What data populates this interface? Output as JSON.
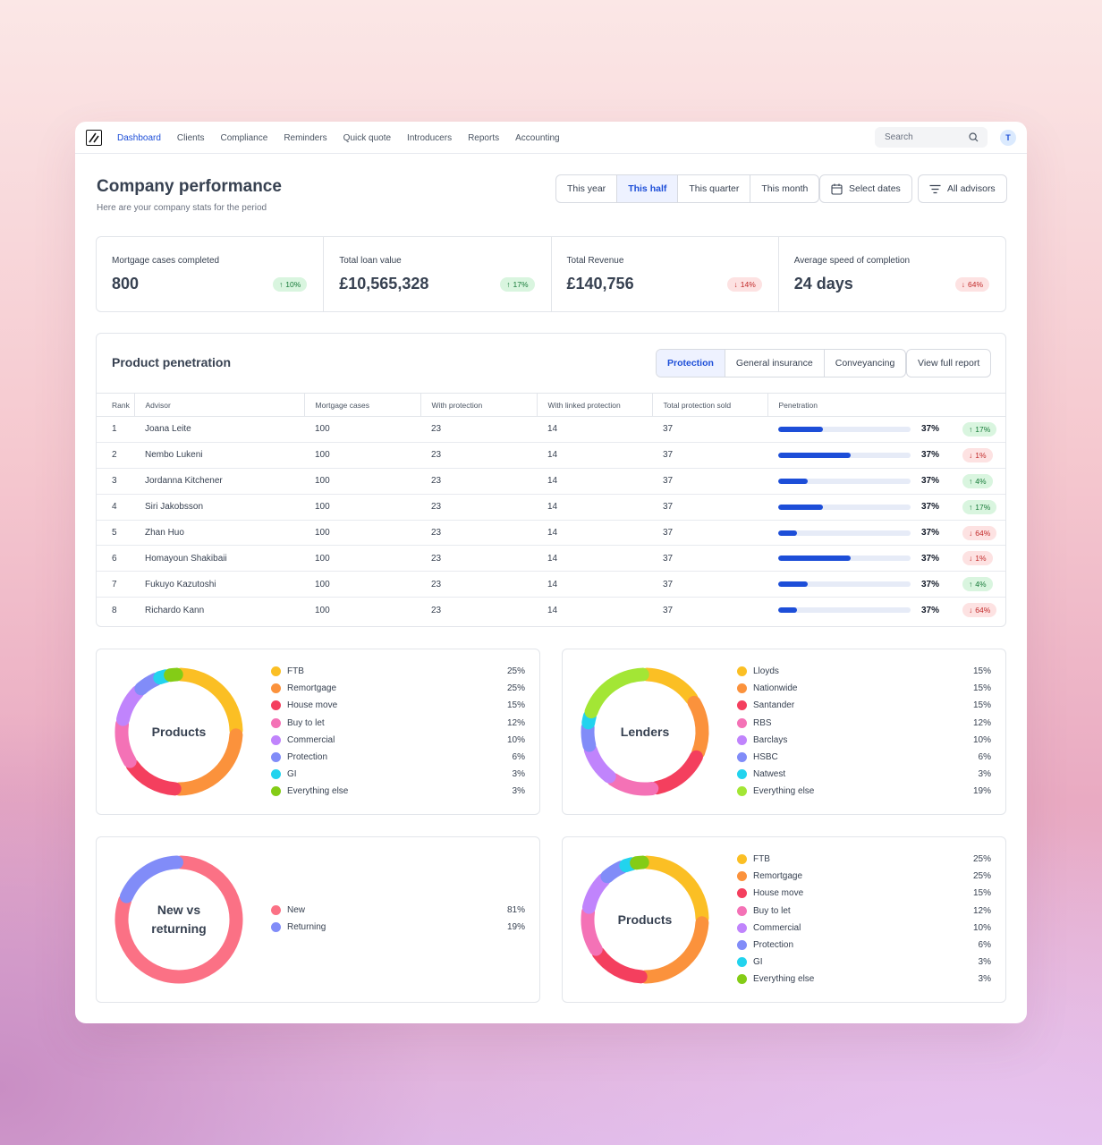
{
  "nav": {
    "links": [
      "Dashboard",
      "Clients",
      "Compliance",
      "Reminders",
      "Quick quote",
      "Introducers",
      "Reports",
      "Accounting"
    ],
    "active": "Dashboard",
    "search_placeholder": "Search",
    "avatar_initial": "T"
  },
  "header": {
    "title": "Company performance",
    "subtitle": "Here are your company stats for the period",
    "periods": [
      "This year",
      "This half",
      "This quarter",
      "This month"
    ],
    "active_period": "This half",
    "select_dates": "Select dates",
    "advisors": "All advisors"
  },
  "stats": [
    {
      "label": "Mortgage cases completed",
      "value": "800",
      "change": "10%",
      "direction": "up"
    },
    {
      "label": "Total loan value",
      "value": "£10,565,328",
      "change": "17%",
      "direction": "up"
    },
    {
      "label": "Total Revenue",
      "value": "£140,756",
      "change": "14%",
      "direction": "down"
    },
    {
      "label": "Average speed of completion",
      "value": "24 days",
      "change": "64%",
      "direction": "down"
    }
  ],
  "penetration": {
    "title": "Product penetration",
    "tabs": [
      "Protection",
      "General insurance",
      "Conveyancing"
    ],
    "active_tab": "Protection",
    "report_button": "View full report",
    "columns": [
      "Rank",
      "Advisor",
      "Mortgage cases",
      "With protection",
      "With linked protection",
      "Total protection sold",
      "Penetration"
    ],
    "rows": [
      {
        "rank": "1",
        "advisor": "Joana Leite",
        "cases": "100",
        "with_protection": "23",
        "linked": "14",
        "total": "37",
        "bar": 0.34,
        "pct": "37%",
        "change": "17%",
        "direction": "up"
      },
      {
        "rank": "2",
        "advisor": "Nembo Lukeni",
        "cases": "100",
        "with_protection": "23",
        "linked": "14",
        "total": "37",
        "bar": 0.55,
        "pct": "37%",
        "change": "1%",
        "direction": "down"
      },
      {
        "rank": "3",
        "advisor": "Jordanna Kitchener",
        "cases": "100",
        "with_protection": "23",
        "linked": "14",
        "total": "37",
        "bar": 0.22,
        "pct": "37%",
        "change": "4%",
        "direction": "up"
      },
      {
        "rank": "4",
        "advisor": "Siri Jakobsson",
        "cases": "100",
        "with_protection": "23",
        "linked": "14",
        "total": "37",
        "bar": 0.34,
        "pct": "37%",
        "change": "17%",
        "direction": "up"
      },
      {
        "rank": "5",
        "advisor": "Zhan Huo",
        "cases": "100",
        "with_protection": "23",
        "linked": "14",
        "total": "37",
        "bar": 0.14,
        "pct": "37%",
        "change": "64%",
        "direction": "down"
      },
      {
        "rank": "6",
        "advisor": "Homayoun Shakibaii",
        "cases": "100",
        "with_protection": "23",
        "linked": "14",
        "total": "37",
        "bar": 0.55,
        "pct": "37%",
        "change": "1%",
        "direction": "down"
      },
      {
        "rank": "7",
        "advisor": "Fukuyo Kazutoshi",
        "cases": "100",
        "with_protection": "23",
        "linked": "14",
        "total": "37",
        "bar": 0.22,
        "pct": "37%",
        "change": "4%",
        "direction": "up"
      },
      {
        "rank": "8",
        "advisor": "Richardo Kann",
        "cases": "100",
        "with_protection": "23",
        "linked": "14",
        "total": "37",
        "bar": 0.14,
        "pct": "37%",
        "change": "64%",
        "direction": "down"
      }
    ]
  },
  "chart_data": [
    {
      "type": "pie",
      "title": "Products",
      "categories": [
        "FTB",
        "Remortgage",
        "House move",
        "Buy to let",
        "Commercial",
        "Protection",
        "GI",
        "Everything else"
      ],
      "values": [
        25,
        25,
        15,
        12,
        10,
        6,
        3,
        3
      ],
      "labels": [
        "25%",
        "25%",
        "15%",
        "12%",
        "10%",
        "6%",
        "3%",
        "3%"
      ],
      "colors": [
        "#fbbf24",
        "#fb923c",
        "#f43f5e",
        "#f472b6",
        "#c084fc",
        "#818cf8",
        "#22d3ee",
        "#84cc16"
      ]
    },
    {
      "type": "pie",
      "title": "Lenders",
      "categories": [
        "Lloyds",
        "Nationwide",
        "Santander",
        "RBS",
        "Barclays",
        "HSBC",
        "Natwest",
        "Everything else"
      ],
      "values": [
        15,
        15,
        15,
        12,
        10,
        6,
        3,
        19
      ],
      "labels": [
        "15%",
        "15%",
        "15%",
        "12%",
        "10%",
        "6%",
        "3%",
        "19%"
      ],
      "colors": [
        "#fbbf24",
        "#fb923c",
        "#f43f5e",
        "#f472b6",
        "#c084fc",
        "#818cf8",
        "#22d3ee",
        "#a3e635"
      ]
    },
    {
      "type": "pie",
      "title": "New vs returning",
      "title_lines": [
        "New vs",
        "returning"
      ],
      "categories": [
        "New",
        "Returning"
      ],
      "values": [
        81,
        19
      ],
      "labels": [
        "81%",
        "19%"
      ],
      "colors": [
        "#fb7185",
        "#818cf8"
      ]
    },
    {
      "type": "pie",
      "title": "Products",
      "categories": [
        "FTB",
        "Remortgage",
        "House move",
        "Buy to let",
        "Commercial",
        "Protection",
        "GI",
        "Everything else"
      ],
      "values": [
        25,
        25,
        15,
        12,
        10,
        6,
        3,
        3
      ],
      "labels": [
        "25%",
        "25%",
        "15%",
        "12%",
        "10%",
        "6%",
        "3%",
        "3%"
      ],
      "colors": [
        "#fbbf24",
        "#fb923c",
        "#f43f5e",
        "#f472b6",
        "#c084fc",
        "#818cf8",
        "#22d3ee",
        "#84cc16"
      ]
    }
  ]
}
